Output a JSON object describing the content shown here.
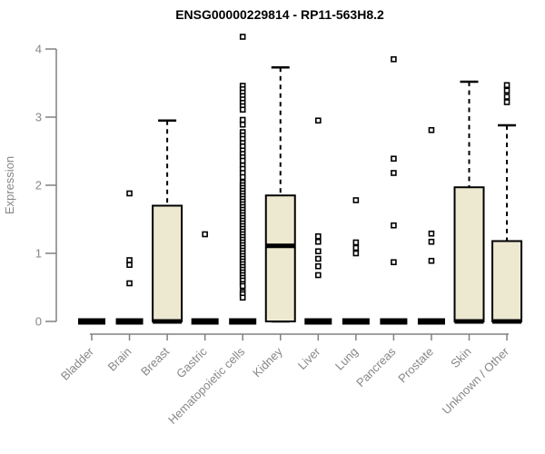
{
  "title": "ENSG00000229814 - RP11-563H8.2",
  "chart_data": {
    "type": "boxplot",
    "title": "ENSG00000229814 - RP11-563H8.2",
    "xlabel": "",
    "ylabel": "Expression",
    "ylim": [
      0,
      4.3
    ],
    "y_ticks": [
      0,
      1,
      2,
      3,
      4
    ],
    "grid": false,
    "legend": "none",
    "colors": {
      "box_fill": "#EDE8D0",
      "box_stroke": "#000000",
      "median": "#000000",
      "whisker": "#000000",
      "outlier_stroke": "#000000",
      "axis": "#808080",
      "tick_label": "#878787",
      "title": "#000000",
      "background": "#ffffff"
    },
    "categories": [
      {
        "name": "Bladder",
        "q1": 0,
        "median": 0,
        "q3": 0,
        "whisker_low": 0,
        "whisker_high": 0,
        "outliers": []
      },
      {
        "name": "Brain",
        "q1": 0,
        "median": 0,
        "q3": 0,
        "whisker_low": 0,
        "whisker_high": 0,
        "outliers": [
          1.88,
          0.9,
          0.83,
          0.56
        ]
      },
      {
        "name": "Breast",
        "q1": 0,
        "median": 0,
        "q3": 1.7,
        "whisker_low": 0,
        "whisker_high": 2.95,
        "outliers": []
      },
      {
        "name": "Gastric",
        "q1": 0,
        "median": 0,
        "q3": 0,
        "whisker_low": 0,
        "whisker_high": 0,
        "outliers": [
          1.28
        ]
      },
      {
        "name": "Hematopoietic cells",
        "q1": 0,
        "median": 0,
        "q3": 0,
        "whisker_low": 0,
        "whisker_high": 0,
        "outliers": [
          4.18,
          3.46,
          3.41,
          3.36,
          3.31,
          3.26,
          3.21,
          3.16,
          3.11,
          2.96,
          2.89,
          2.78,
          2.73,
          2.68,
          2.62,
          2.57,
          2.51,
          2.46,
          2.41,
          2.36,
          2.29,
          2.24,
          2.18,
          2.12,
          2.04,
          2.0,
          1.96,
          1.92,
          1.88,
          1.84,
          1.8,
          1.76,
          1.72,
          1.68,
          1.64,
          1.6,
          1.56,
          1.52,
          1.48,
          1.44,
          1.4,
          1.36,
          1.32,
          1.28,
          1.24,
          1.2,
          1.16,
          1.12,
          1.08,
          1.04,
          1.0,
          0.96,
          0.92,
          0.88,
          0.84,
          0.8,
          0.76,
          0.72,
          0.68,
          0.64,
          0.6,
          0.55,
          0.52,
          0.43,
          0.4,
          0.35
        ]
      },
      {
        "name": "Kidney",
        "q1": 0,
        "median": 1.11,
        "q3": 1.85,
        "whisker_low": 0,
        "whisker_high": 3.73,
        "outliers": []
      },
      {
        "name": "Liver",
        "q1": 0,
        "median": 0,
        "q3": 0,
        "whisker_low": 0,
        "whisker_high": 0,
        "outliers": [
          2.95,
          1.25,
          1.17,
          1.03,
          0.92,
          0.81,
          0.68
        ]
      },
      {
        "name": "Lung",
        "q1": 0,
        "median": 0,
        "q3": 0,
        "whisker_low": 0,
        "whisker_high": 0,
        "outliers": [
          1.78,
          1.16,
          1.08,
          1.0
        ]
      },
      {
        "name": "Pancreas",
        "q1": 0,
        "median": 0,
        "q3": 0,
        "whisker_low": 0,
        "whisker_high": 0,
        "outliers": [
          3.85,
          2.39,
          2.18,
          1.41,
          0.87
        ]
      },
      {
        "name": "Prostate",
        "q1": 0,
        "median": 0,
        "q3": 0,
        "whisker_low": 0,
        "whisker_high": 0,
        "outliers": [
          2.81,
          1.29,
          1.17,
          0.89
        ]
      },
      {
        "name": "Skin",
        "q1": 0,
        "median": 0,
        "q3": 1.97,
        "whisker_low": 0,
        "whisker_high": 3.52,
        "outliers": []
      },
      {
        "name": "Unknown / Other",
        "q1": 0,
        "median": 0,
        "q3": 1.18,
        "whisker_low": 0,
        "whisker_high": 2.88,
        "outliers": [
          3.47,
          3.39,
          3.3,
          3.22
        ]
      }
    ]
  }
}
